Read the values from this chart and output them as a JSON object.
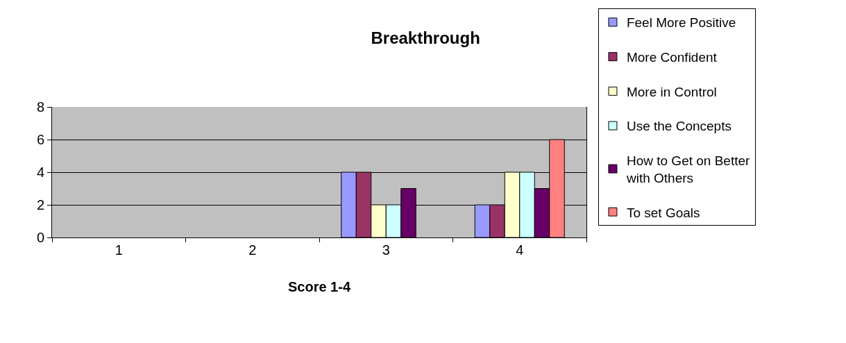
{
  "chart_data": {
    "type": "bar",
    "title": "Breakthrough",
    "xlabel": "Score 1-4",
    "categories": [
      "1",
      "2",
      "3",
      "4"
    ],
    "series": [
      {
        "name": "Feel More Positive",
        "color": "#9999ff",
        "values": [
          null,
          null,
          4,
          2
        ]
      },
      {
        "name": "More Confident",
        "color": "#993366",
        "values": [
          null,
          null,
          4,
          2
        ]
      },
      {
        "name": "More in Control",
        "color": "#ffffcc",
        "values": [
          null,
          null,
          2,
          4
        ]
      },
      {
        "name": "Use the Concepts",
        "color": "#ccffff",
        "values": [
          null,
          null,
          2,
          4
        ]
      },
      {
        "name": "How to Get on Better with Others",
        "color": "#660066",
        "values": [
          null,
          null,
          3,
          3
        ]
      },
      {
        "name": "To set Goals",
        "color": "#ff8080",
        "values": [
          null,
          null,
          null,
          6
        ]
      }
    ],
    "ylim": [
      0,
      8
    ],
    "yticks": [
      0,
      2,
      4,
      6,
      8
    ],
    "grid": "y",
    "legend": "right"
  }
}
